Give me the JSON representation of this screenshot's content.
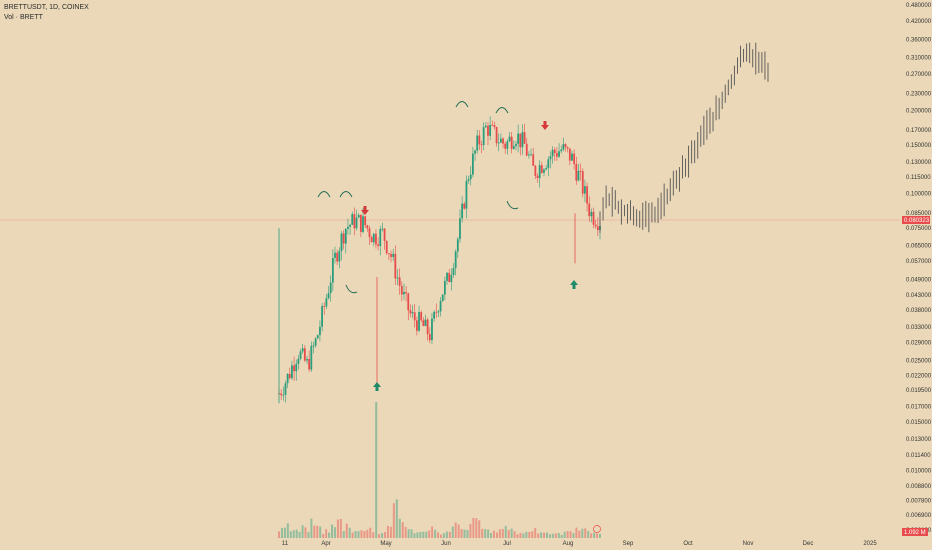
{
  "legend": {
    "symbol_line": "BRETTUSDT, 1D, COINEX",
    "volume_line": "Vol · BRETT"
  },
  "price_tag": {
    "value": "0.080323",
    "color": "#e84b4b"
  },
  "volume_tag": {
    "value": "1.092 M",
    "color": "#e84b4b"
  },
  "colors": {
    "up": "#2a9d7c",
    "down": "#e84b4b",
    "projection": "#555555",
    "marker_up": "#1e8a6a",
    "marker_down": "#d43a3a",
    "arc": "#1f6b55",
    "background": "#ead8b8",
    "price_line": "#e89b8b"
  },
  "chart_data": {
    "type": "candlestick",
    "title": "BRETTUSDT, 1D, COINEX",
    "y_scale": "log",
    "ylim": [
      0.0061,
      0.48
    ],
    "y_ticks": [
      "0.480000",
      "0.420000",
      "0.360000",
      "0.310000",
      "0.270000",
      "0.230000",
      "0.200000",
      "0.170000",
      "0.150000",
      "0.130000",
      "0.115000",
      "0.100000",
      "0.085000",
      "0.075000",
      "0.065000",
      "0.057000",
      "0.049000",
      "0.043000",
      "0.038000",
      "0.033000",
      "0.029000",
      "0.025000",
      "0.022000",
      "0.019500",
      "0.017000",
      "0.015000",
      "0.013000",
      "0.011400",
      "0.010000",
      "0.008800",
      "0.007800",
      "0.006900",
      "0.006100"
    ],
    "x_ticks": [
      "11",
      "Apr",
      "May",
      "Jun",
      "Jul",
      "Aug",
      "Sep",
      "Oct",
      "Nov",
      "Dec",
      "2025"
    ],
    "current_price": 0.080323,
    "actual_trend": [
      0.019,
      0.022,
      0.027,
      0.024,
      0.03,
      0.042,
      0.06,
      0.075,
      0.08,
      0.078,
      0.07,
      0.072,
      0.058,
      0.044,
      0.036,
      0.034,
      0.031,
      0.042,
      0.05,
      0.07,
      0.115,
      0.15,
      0.175,
      0.16,
      0.15,
      0.165,
      0.15,
      0.12,
      0.13,
      0.14,
      0.145,
      0.135,
      0.11,
      0.085,
      0.08
    ],
    "projection_trend": [
      0.08,
      0.095,
      0.092,
      0.088,
      0.085,
      0.083,
      0.082,
      0.08,
      0.085,
      0.092,
      0.1,
      0.112,
      0.12,
      0.135,
      0.15,
      0.17,
      0.185,
      0.2,
      0.23,
      0.26,
      0.3,
      0.33,
      0.31,
      0.29,
      0.275
    ],
    "volume_relative": [
      0.25,
      0.35,
      0.2,
      0.18,
      0.3,
      0.22,
      0.4,
      0.28,
      0.15,
      0.2,
      0.3,
      0.45,
      0.25,
      0.35,
      0.2,
      0.18,
      0.22,
      0.3,
      0.15,
      0.12,
      0.2,
      0.25,
      1.0,
      0.55,
      0.3,
      0.2,
      0.18,
      0.15,
      0.22,
      0.3,
      0.18,
      0.12,
      0.15,
      0.25,
      0.35,
      0.2,
      0.3,
      0.45,
      0.5,
      0.25,
      0.2,
      0.15,
      0.2,
      0.25,
      0.3,
      0.18,
      0.12,
      0.15,
      0.2,
      0.25,
      0.18,
      0.15,
      0.12,
      0.1,
      0.12,
      0.15,
      0.18,
      0.35,
      0.25,
      0.2,
      0.15,
      0.12,
      0.1
    ],
    "markers": [
      {
        "type": "sell",
        "near": "Apr peak",
        "price": 0.084
      },
      {
        "type": "buy",
        "near": "May low",
        "price": 0.02
      },
      {
        "type": "sell",
        "near": "Jul top",
        "price": 0.17
      },
      {
        "type": "buy",
        "near": "Aug low",
        "price": 0.046
      }
    ]
  }
}
